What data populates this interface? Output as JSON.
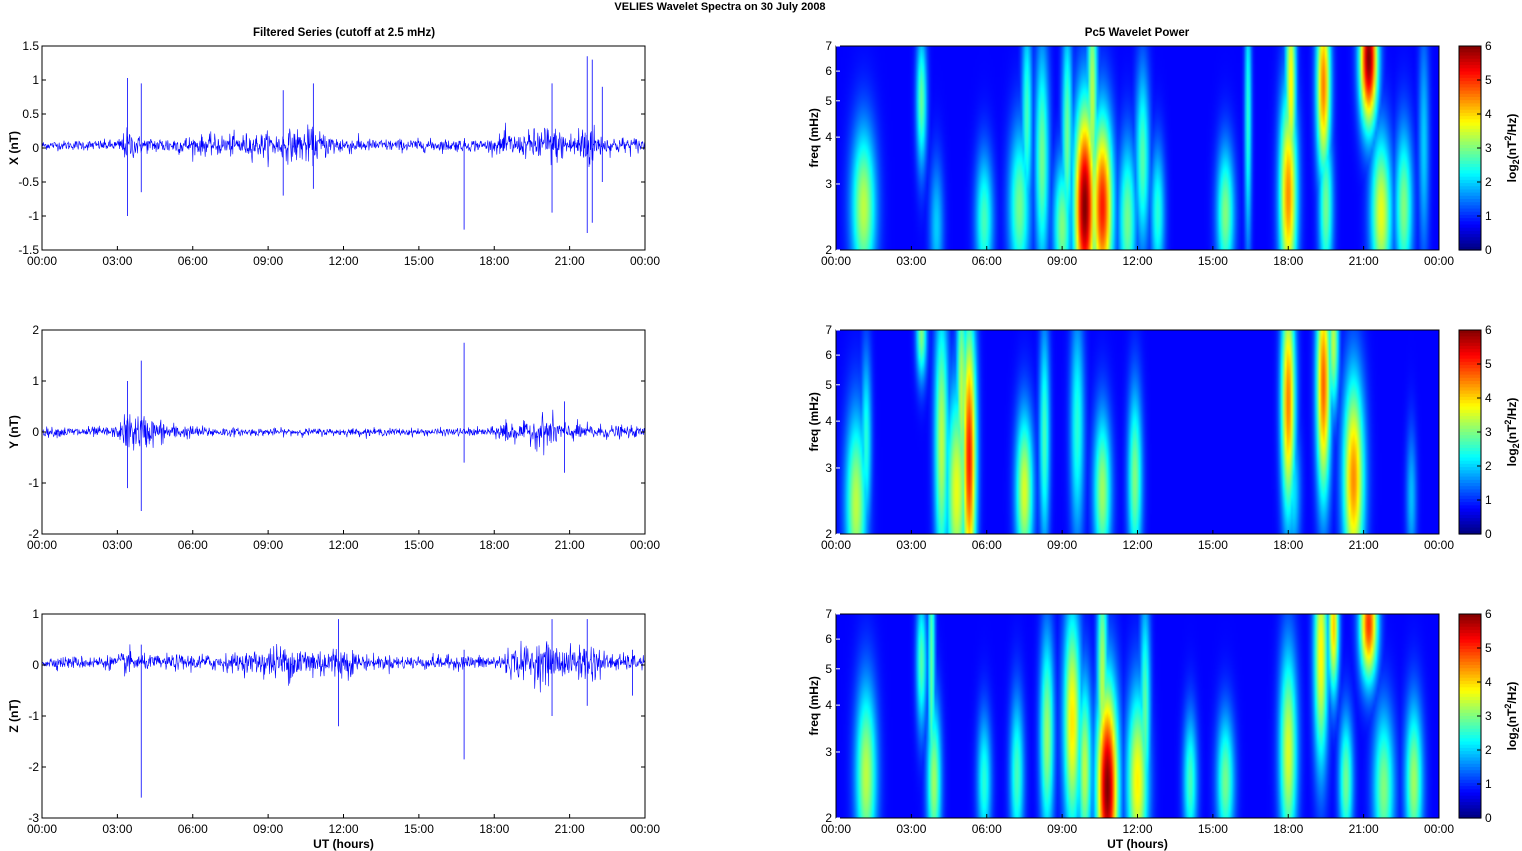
{
  "figure": {
    "suptitle": "VELIES Wavelet Spectra on 30 July      2008",
    "left_title": "Filtered Series (cutoff at 2.5 mHz)",
    "right_title": "Pc5 Wavelet Power"
  },
  "chart_data": [
    {
      "type": "line",
      "name": "x-series",
      "ylabel": "X (nT)",
      "xlabel": "",
      "x_ticks": [
        "00:00",
        "03:00",
        "06:00",
        "09:00",
        "12:00",
        "15:00",
        "18:00",
        "21:00",
        "00:00"
      ],
      "xlim_hours": [
        0,
        24
      ],
      "ylim": [
        -1.5,
        1.5
      ],
      "y_ticks": [
        -1.5,
        -1,
        -0.5,
        0,
        0.5,
        1,
        1.5
      ],
      "y_tick_labels": [
        "-1.5",
        "-1",
        "-0.5",
        "0",
        "0.5",
        "1",
        "1.5"
      ],
      "color": "#0000ff",
      "baseline": 0.04,
      "noise_profile": [
        [
          0,
          0.07
        ],
        [
          3,
          0.09
        ],
        [
          3.4,
          0.28
        ],
        [
          4,
          0.12
        ],
        [
          7.5,
          0.18
        ],
        [
          9.5,
          0.22
        ],
        [
          10.5,
          0.3
        ],
        [
          11.5,
          0.18
        ],
        [
          13,
          0.1
        ],
        [
          18,
          0.1
        ],
        [
          18.5,
          0.25
        ],
        [
          19,
          0.15
        ],
        [
          20,
          0.35
        ],
        [
          21,
          0.2
        ],
        [
          21.7,
          0.45
        ],
        [
          22.3,
          0.15
        ],
        [
          24,
          0.12
        ]
      ],
      "spikes": [
        [
          3.4,
          1.03,
          -1.0
        ],
        [
          3.95,
          0.95,
          -0.65
        ],
        [
          9.6,
          0.85,
          -0.7
        ],
        [
          10.8,
          0.95,
          -0.6
        ],
        [
          16.8,
          0.1,
          -1.2
        ],
        [
          20.3,
          0.95,
          -0.95
        ],
        [
          21.7,
          1.35,
          -1.25
        ],
        [
          21.9,
          1.3,
          -1.1
        ],
        [
          22.3,
          0.9,
          -0.5
        ]
      ]
    },
    {
      "type": "line",
      "name": "y-series",
      "ylabel": "Y (nT)",
      "xlabel": "",
      "x_ticks": [
        "00:00",
        "03:00",
        "06:00",
        "09:00",
        "12:00",
        "15:00",
        "18:00",
        "21:00",
        "00:00"
      ],
      "xlim_hours": [
        0,
        24
      ],
      "ylim": [
        -2,
        2
      ],
      "y_ticks": [
        -2,
        -1,
        0,
        1,
        2
      ],
      "y_tick_labels": [
        "-2",
        "-1",
        "0",
        "1",
        "2"
      ],
      "color": "#0000ff",
      "baseline": 0.0,
      "noise_profile": [
        [
          0,
          0.1
        ],
        [
          3,
          0.12
        ],
        [
          3.4,
          0.45
        ],
        [
          4.5,
          0.3
        ],
        [
          5.5,
          0.15
        ],
        [
          8,
          0.08
        ],
        [
          16,
          0.08
        ],
        [
          18,
          0.1
        ],
        [
          18.5,
          0.35
        ],
        [
          19,
          0.15
        ],
        [
          20,
          0.4
        ],
        [
          21,
          0.2
        ],
        [
          24,
          0.1
        ]
      ],
      "spikes": [
        [
          3.4,
          1.0,
          -1.1
        ],
        [
          3.95,
          1.4,
          -1.55
        ],
        [
          16.8,
          1.75,
          -0.6
        ],
        [
          20.8,
          0.6,
          -0.8
        ]
      ]
    },
    {
      "type": "line",
      "name": "z-series",
      "ylabel": "Z (nT)",
      "xlabel": "UT (hours)",
      "x_ticks": [
        "00:00",
        "03:00",
        "06:00",
        "09:00",
        "12:00",
        "15:00",
        "18:00",
        "21:00",
        "00:00"
      ],
      "xlim_hours": [
        0,
        24
      ],
      "ylim": [
        -3,
        1
      ],
      "y_ticks": [
        -3,
        -2,
        -1,
        0,
        1
      ],
      "y_tick_labels": [
        "-3",
        "-2",
        "-1",
        "0",
        "1"
      ],
      "color": "#0000ff",
      "baseline": 0.05,
      "noise_profile": [
        [
          0,
          0.12
        ],
        [
          3,
          0.15
        ],
        [
          3.4,
          0.3
        ],
        [
          4,
          0.15
        ],
        [
          8,
          0.2
        ],
        [
          9.5,
          0.4
        ],
        [
          11,
          0.35
        ],
        [
          12,
          0.35
        ],
        [
          13,
          0.15
        ],
        [
          18,
          0.15
        ],
        [
          18.5,
          0.3
        ],
        [
          20,
          0.45
        ],
        [
          21,
          0.3
        ],
        [
          21.7,
          0.5
        ],
        [
          22.5,
          0.2
        ],
        [
          24,
          0.15
        ]
      ],
      "spikes": [
        [
          3.95,
          0.4,
          -2.6
        ],
        [
          11.8,
          0.9,
          -1.2
        ],
        [
          16.8,
          0.3,
          -1.85
        ],
        [
          20.3,
          0.9,
          -1.0
        ],
        [
          21.7,
          0.9,
          -0.8
        ],
        [
          23.5,
          0.3,
          -0.6
        ]
      ]
    },
    {
      "type": "heatmap",
      "name": "x-wavelet",
      "ylabel": "freq (mHz)",
      "xlabel": "",
      "x_ticks": [
        "00:00",
        "03:00",
        "06:00",
        "09:00",
        "12:00",
        "15:00",
        "18:00",
        "21:00",
        "00:00"
      ],
      "xlim_hours": [
        0,
        24
      ],
      "y_scale": "log",
      "ylim_mhz": [
        2,
        7
      ],
      "y_ticks": [
        2,
        3,
        4,
        5,
        6,
        7
      ],
      "y_tick_labels": [
        "2",
        "3",
        "4",
        "5",
        "6",
        "7"
      ],
      "colorbar": {
        "label": "log2(nT2/Hz)",
        "ticks": [
          0,
          1,
          2,
          3,
          4,
          5,
          6
        ],
        "range": [
          0,
          6
        ]
      },
      "blobs": [
        {
          "t": 1.1,
          "f": 2.6,
          "p": 3.0,
          "w": 0.35,
          "h": 0.35
        },
        {
          "t": 3.4,
          "f": 5.0,
          "p": 2.4,
          "w": 0.15,
          "h": 0.3
        },
        {
          "t": 4.0,
          "f": 2.3,
          "p": 1.4,
          "w": 0.2,
          "h": 0.3
        },
        {
          "t": 5.9,
          "f": 2.4,
          "p": 2.2,
          "w": 0.25,
          "h": 0.3
        },
        {
          "t": 7.3,
          "f": 2.6,
          "p": 2.5,
          "w": 0.3,
          "h": 0.35
        },
        {
          "t": 7.6,
          "f": 4.5,
          "p": 2.2,
          "w": 0.15,
          "h": 0.45
        },
        {
          "t": 8.2,
          "f": 3.5,
          "p": 2.5,
          "w": 0.2,
          "h": 0.5
        },
        {
          "t": 9.0,
          "f": 2.3,
          "p": 2.6,
          "w": 0.25,
          "h": 0.3
        },
        {
          "t": 9.2,
          "f": 4.0,
          "p": 2.5,
          "w": 0.15,
          "h": 0.5
        },
        {
          "t": 9.9,
          "f": 2.6,
          "p": 6.0,
          "w": 0.3,
          "h": 0.45
        },
        {
          "t": 10.6,
          "f": 2.6,
          "p": 5.0,
          "w": 0.3,
          "h": 0.4
        },
        {
          "t": 10.2,
          "f": 5.0,
          "p": 3.0,
          "w": 0.15,
          "h": 0.6
        },
        {
          "t": 11.6,
          "f": 2.4,
          "p": 2.5,
          "w": 0.25,
          "h": 0.35
        },
        {
          "t": 12.2,
          "f": 3.5,
          "p": 2.3,
          "w": 0.2,
          "h": 0.4
        },
        {
          "t": 12.8,
          "f": 2.5,
          "p": 2.0,
          "w": 0.2,
          "h": 0.3
        },
        {
          "t": 15.5,
          "f": 2.5,
          "p": 2.6,
          "w": 0.25,
          "h": 0.3
        },
        {
          "t": 16.4,
          "f": 4.5,
          "p": 2.0,
          "w": 0.1,
          "h": 0.6
        },
        {
          "t": 18.0,
          "f": 2.8,
          "p": 4.2,
          "w": 0.25,
          "h": 0.45
        },
        {
          "t": 18.1,
          "f": 5.5,
          "p": 3.5,
          "w": 0.15,
          "h": 0.5
        },
        {
          "t": 19.4,
          "f": 5.5,
          "p": 4.3,
          "w": 0.2,
          "h": 0.4
        },
        {
          "t": 19.5,
          "f": 2.6,
          "p": 2.5,
          "w": 0.2,
          "h": 0.35
        },
        {
          "t": 21.2,
          "f": 6.5,
          "p": 6.0,
          "w": 0.25,
          "h": 0.3
        },
        {
          "t": 21.7,
          "f": 2.5,
          "p": 3.3,
          "w": 0.3,
          "h": 0.35
        },
        {
          "t": 22.6,
          "f": 2.6,
          "p": 2.6,
          "w": 0.25,
          "h": 0.35
        },
        {
          "t": 23.4,
          "f": 3.8,
          "p": 1.4,
          "w": 0.15,
          "h": 0.5
        }
      ]
    },
    {
      "type": "heatmap",
      "name": "y-wavelet",
      "ylabel": "freq (mHz)",
      "xlabel": "",
      "x_ticks": [
        "00:00",
        "03:00",
        "06:00",
        "09:00",
        "12:00",
        "15:00",
        "18:00",
        "21:00",
        "00:00"
      ],
      "xlim_hours": [
        0,
        24
      ],
      "y_scale": "log",
      "ylim_mhz": [
        2,
        7
      ],
      "y_ticks": [
        2,
        3,
        4,
        5,
        6,
        7
      ],
      "y_tick_labels": [
        "2",
        "3",
        "4",
        "5",
        "6",
        "7"
      ],
      "colorbar": {
        "label": "log2(nT2/Hz)",
        "ticks": [
          0,
          1,
          2,
          3,
          4,
          5,
          6
        ],
        "range": [
          0,
          6
        ]
      },
      "blobs": [
        {
          "t": 0.8,
          "f": 2.4,
          "p": 3.0,
          "w": 0.3,
          "h": 0.4
        },
        {
          "t": 1.2,
          "f": 3.5,
          "p": 2.0,
          "w": 0.15,
          "h": 0.4
        },
        {
          "t": 3.4,
          "f": 6.8,
          "p": 2.6,
          "w": 0.15,
          "h": 0.2
        },
        {
          "t": 4.2,
          "f": 3.5,
          "p": 3.0,
          "w": 0.2,
          "h": 0.6
        },
        {
          "t": 4.8,
          "f": 2.6,
          "p": 3.3,
          "w": 0.3,
          "h": 0.45
        },
        {
          "t": 5.3,
          "f": 3.2,
          "p": 5.0,
          "w": 0.2,
          "h": 0.6
        },
        {
          "t": 5.0,
          "f": 4.8,
          "p": 3.0,
          "w": 0.15,
          "h": 0.5
        },
        {
          "t": 7.5,
          "f": 2.6,
          "p": 3.2,
          "w": 0.25,
          "h": 0.35
        },
        {
          "t": 8.3,
          "f": 3.6,
          "p": 2.2,
          "w": 0.15,
          "h": 0.5
        },
        {
          "t": 9.6,
          "f": 3.8,
          "p": 2.0,
          "w": 0.2,
          "h": 0.5
        },
        {
          "t": 10.6,
          "f": 2.6,
          "p": 2.8,
          "w": 0.25,
          "h": 0.35
        },
        {
          "t": 11.9,
          "f": 2.8,
          "p": 2.6,
          "w": 0.2,
          "h": 0.4
        },
        {
          "t": 18.0,
          "f": 4.5,
          "p": 4.3,
          "w": 0.2,
          "h": 0.5
        },
        {
          "t": 18.2,
          "f": 2.6,
          "p": 1.6,
          "w": 0.2,
          "h": 0.3
        },
        {
          "t": 19.4,
          "f": 5.0,
          "p": 4.5,
          "w": 0.2,
          "h": 0.5
        },
        {
          "t": 19.8,
          "f": 6.5,
          "p": 3.0,
          "w": 0.15,
          "h": 0.3
        },
        {
          "t": 20.6,
          "f": 2.8,
          "p": 4.2,
          "w": 0.3,
          "h": 0.45
        },
        {
          "t": 22.9,
          "f": 2.5,
          "p": 1.3,
          "w": 0.15,
          "h": 0.3
        }
      ]
    },
    {
      "type": "heatmap",
      "name": "z-wavelet",
      "ylabel": "freq (mHz)",
      "xlabel": "UT (hours)",
      "x_ticks": [
        "00:00",
        "03:00",
        "06:00",
        "09:00",
        "12:00",
        "15:00",
        "18:00",
        "21:00",
        "00:00"
      ],
      "xlim_hours": [
        0,
        24
      ],
      "y_scale": "log",
      "ylim_mhz": [
        2,
        7
      ],
      "y_ticks": [
        2,
        3,
        4,
        5,
        6,
        7
      ],
      "y_tick_labels": [
        "2",
        "3",
        "4",
        "5",
        "6",
        "7"
      ],
      "colorbar": {
        "label": "log2(nT2/Hz)",
        "ticks": [
          0,
          1,
          2,
          3,
          4,
          5,
          6
        ],
        "range": [
          0,
          6
        ]
      },
      "blobs": [
        {
          "t": 1.2,
          "f": 2.6,
          "p": 3.0,
          "w": 0.3,
          "h": 0.4
        },
        {
          "t": 3.4,
          "f": 5.2,
          "p": 2.3,
          "w": 0.15,
          "h": 0.3
        },
        {
          "t": 3.9,
          "f": 2.5,
          "p": 2.8,
          "w": 0.2,
          "h": 0.35
        },
        {
          "t": 3.8,
          "f": 5.0,
          "p": 2.4,
          "w": 0.1,
          "h": 0.8
        },
        {
          "t": 5.9,
          "f": 2.5,
          "p": 2.0,
          "w": 0.2,
          "h": 0.3
        },
        {
          "t": 7.2,
          "f": 2.6,
          "p": 2.2,
          "w": 0.2,
          "h": 0.35
        },
        {
          "t": 8.4,
          "f": 3.3,
          "p": 2.8,
          "w": 0.2,
          "h": 0.45
        },
        {
          "t": 9.4,
          "f": 3.6,
          "p": 3.6,
          "w": 0.25,
          "h": 0.5
        },
        {
          "t": 9.9,
          "f": 2.7,
          "p": 3.0,
          "w": 0.2,
          "h": 0.4
        },
        {
          "t": 10.8,
          "f": 2.4,
          "p": 6.0,
          "w": 0.3,
          "h": 0.45
        },
        {
          "t": 10.6,
          "f": 4.5,
          "p": 3.0,
          "w": 0.15,
          "h": 0.6
        },
        {
          "t": 12.0,
          "f": 2.5,
          "p": 3.5,
          "w": 0.3,
          "h": 0.4
        },
        {
          "t": 12.3,
          "f": 3.8,
          "p": 2.4,
          "w": 0.15,
          "h": 0.5
        },
        {
          "t": 14.1,
          "f": 2.5,
          "p": 2.2,
          "w": 0.2,
          "h": 0.3
        },
        {
          "t": 15.5,
          "f": 2.5,
          "p": 2.5,
          "w": 0.25,
          "h": 0.3
        },
        {
          "t": 18.0,
          "f": 3.0,
          "p": 3.2,
          "w": 0.25,
          "h": 0.45
        },
        {
          "t": 19.3,
          "f": 5.5,
          "p": 3.5,
          "w": 0.2,
          "h": 0.5
        },
        {
          "t": 19.8,
          "f": 6.5,
          "p": 3.8,
          "w": 0.15,
          "h": 0.3
        },
        {
          "t": 20.3,
          "f": 2.5,
          "p": 2.5,
          "w": 0.2,
          "h": 0.3
        },
        {
          "t": 21.2,
          "f": 6.6,
          "p": 4.8,
          "w": 0.25,
          "h": 0.25
        },
        {
          "t": 21.8,
          "f": 2.4,
          "p": 2.6,
          "w": 0.3,
          "h": 0.35
        },
        {
          "t": 23.0,
          "f": 2.5,
          "p": 2.8,
          "w": 0.25,
          "h": 0.35
        }
      ]
    }
  ]
}
